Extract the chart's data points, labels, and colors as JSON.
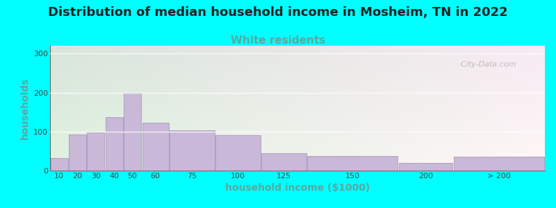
{
  "title": "Distribution of median household income in Mosheim, TN in 2022",
  "subtitle": "White residents",
  "xlabel": "household income ($1000)",
  "ylabel": "households",
  "background_outer": "#00FFFF",
  "bar_color": "#C9B8D8",
  "bar_edgecolor": "#A898B8",
  "title_fontsize": 13,
  "title_color": "#222222",
  "subtitle_fontsize": 11,
  "subtitle_color": "#5BA8A0",
  "ylabel_color": "#5BA8A0",
  "xlabel_color": "#5BA8A0",
  "tick_color": "#444444",
  "categories": [
    "10",
    "20",
    "30",
    "40",
    "50",
    "60",
    "75",
    "100",
    "125",
    "150",
    "200",
    "> 200"
  ],
  "values": [
    32,
    92,
    97,
    137,
    200,
    122,
    103,
    90,
    45,
    38,
    20,
    35
  ],
  "bar_lefts": [
    0,
    1,
    2,
    3,
    4,
    5,
    6,
    7,
    8,
    9,
    10,
    11
  ],
  "bar_widths_visual": [
    1,
    1,
    1,
    1,
    1,
    1.5,
    2.5,
    2.5,
    2.5,
    5,
    5,
    5
  ],
  "ylim": [
    0,
    320
  ],
  "yticks": [
    0,
    100,
    200,
    300
  ],
  "watermark": "  City-Data.com"
}
